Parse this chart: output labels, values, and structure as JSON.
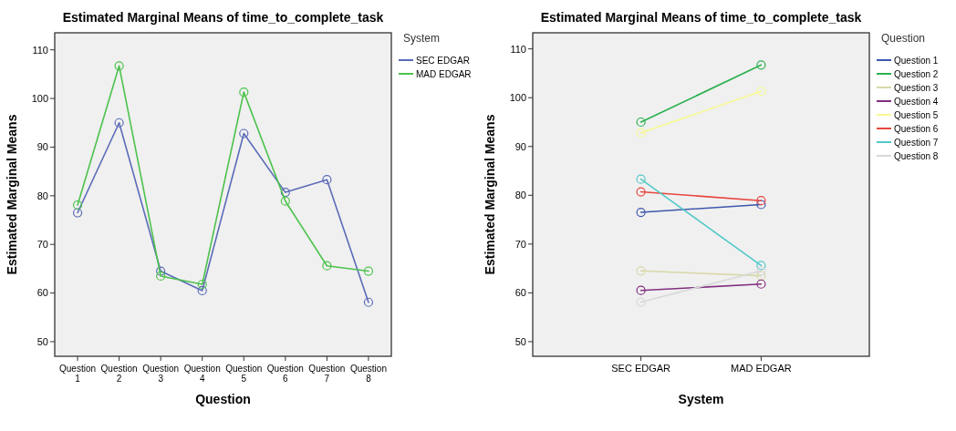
{
  "chart_data": [
    {
      "type": "line",
      "title": "Estimated Marginal Means of time_to_complete_task",
      "xlabel": "Question",
      "ylabel": "Estimated Marginal Means",
      "legend_title": "System",
      "categories": [
        "Question 1",
        "Question 2",
        "Question 3",
        "Question 4",
        "Question 5",
        "Question 6",
        "Question 7",
        "Question 8"
      ],
      "ylim": [
        47,
        113.5
      ],
      "yticks": [
        50,
        60,
        70,
        80,
        90,
        100,
        110
      ],
      "legend": "top right",
      "marker": "circle",
      "series": [
        {
          "name": "SEC EDGAR",
          "color": "#5b6bb8",
          "values": [
            76.5,
            95,
            64.5,
            60.5,
            92.8,
            80.7,
            83.3,
            58.1
          ]
        },
        {
          "name": "MAD EDGAR",
          "color": "#4cc24c",
          "values": [
            78.1,
            106.7,
            63.5,
            61.8,
            101.3,
            78.9,
            65.6,
            64.5
          ]
        }
      ]
    },
    {
      "type": "line",
      "title": "Estimated Marginal Means of time_to_complete_task",
      "xlabel": "System",
      "ylabel": "Estimated Marginal Means",
      "legend_title": "Question",
      "categories": [
        "SEC EDGAR",
        "MAD EDGAR"
      ],
      "ylim": [
        47,
        113.3
      ],
      "yticks": [
        50,
        60,
        70,
        80,
        90,
        100,
        110
      ],
      "legend": "top right",
      "marker": "circle",
      "series": [
        {
          "name": "Question 1",
          "color": "#3e58ac",
          "values": [
            76.5,
            78.1
          ]
        },
        {
          "name": "Question 2",
          "color": "#2bb04f",
          "values": [
            95,
            106.7
          ]
        },
        {
          "name": "Question 3",
          "color": "#d8d8a8",
          "values": [
            64.5,
            63.5
          ]
        },
        {
          "name": "Question 4",
          "color": "#803080",
          "values": [
            60.5,
            61.8
          ]
        },
        {
          "name": "Question 5",
          "color": "#f8f890",
          "values": [
            92.8,
            101.3
          ]
        },
        {
          "name": "Question 6",
          "color": "#e8453f",
          "values": [
            80.7,
            78.9
          ]
        },
        {
          "name": "Question 7",
          "color": "#52c8c8",
          "values": [
            83.3,
            65.6
          ]
        },
        {
          "name": "Question 8",
          "color": "#d8d8d8",
          "values": [
            58.1,
            64.5
          ]
        }
      ]
    }
  ]
}
